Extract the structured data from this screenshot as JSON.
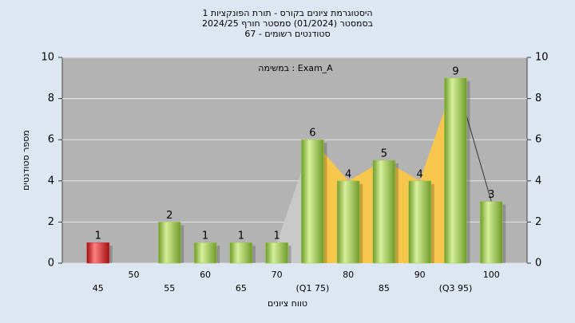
{
  "chart_data": {
    "type": "bar",
    "title": "היסטוגרמת ציונים בקורס - תורת הפונקציות 1",
    "subtitle": "בסמסטר  (01/2024)  סמסטר חורף 2024/25",
    "subtitle2": "סטודנטים רשומים - 67",
    "annotation": "במשימה : Exam_A",
    "x_label": "טווח ציונים",
    "y_label": "מספר סטודנטים",
    "categories": [
      "45",
      "50",
      "55",
      "60",
      "65",
      "70",
      "(Q1 75)",
      "80",
      "85",
      "90",
      "(Q3 95)",
      "100"
    ],
    "values": [
      1,
      0,
      2,
      1,
      1,
      1,
      6,
      4,
      5,
      4,
      9,
      3
    ],
    "colors": [
      "#d92a2a",
      "#9bc94a",
      "#9bc94a",
      "#9bc94a",
      "#9bc94a",
      "#9bc94a",
      "#9bc94a",
      "#9bc94a",
      "#9bc94a",
      "#9bc94a",
      "#9bc94a",
      "#9bc94a"
    ],
    "ylim": [
      0,
      10
    ],
    "yticks": [
      0,
      2,
      4,
      6,
      8,
      10
    ],
    "y2lim": [
      0,
      10
    ],
    "y2ticks": [
      0,
      2,
      4,
      6,
      8,
      10
    ],
    "grid": true
  }
}
